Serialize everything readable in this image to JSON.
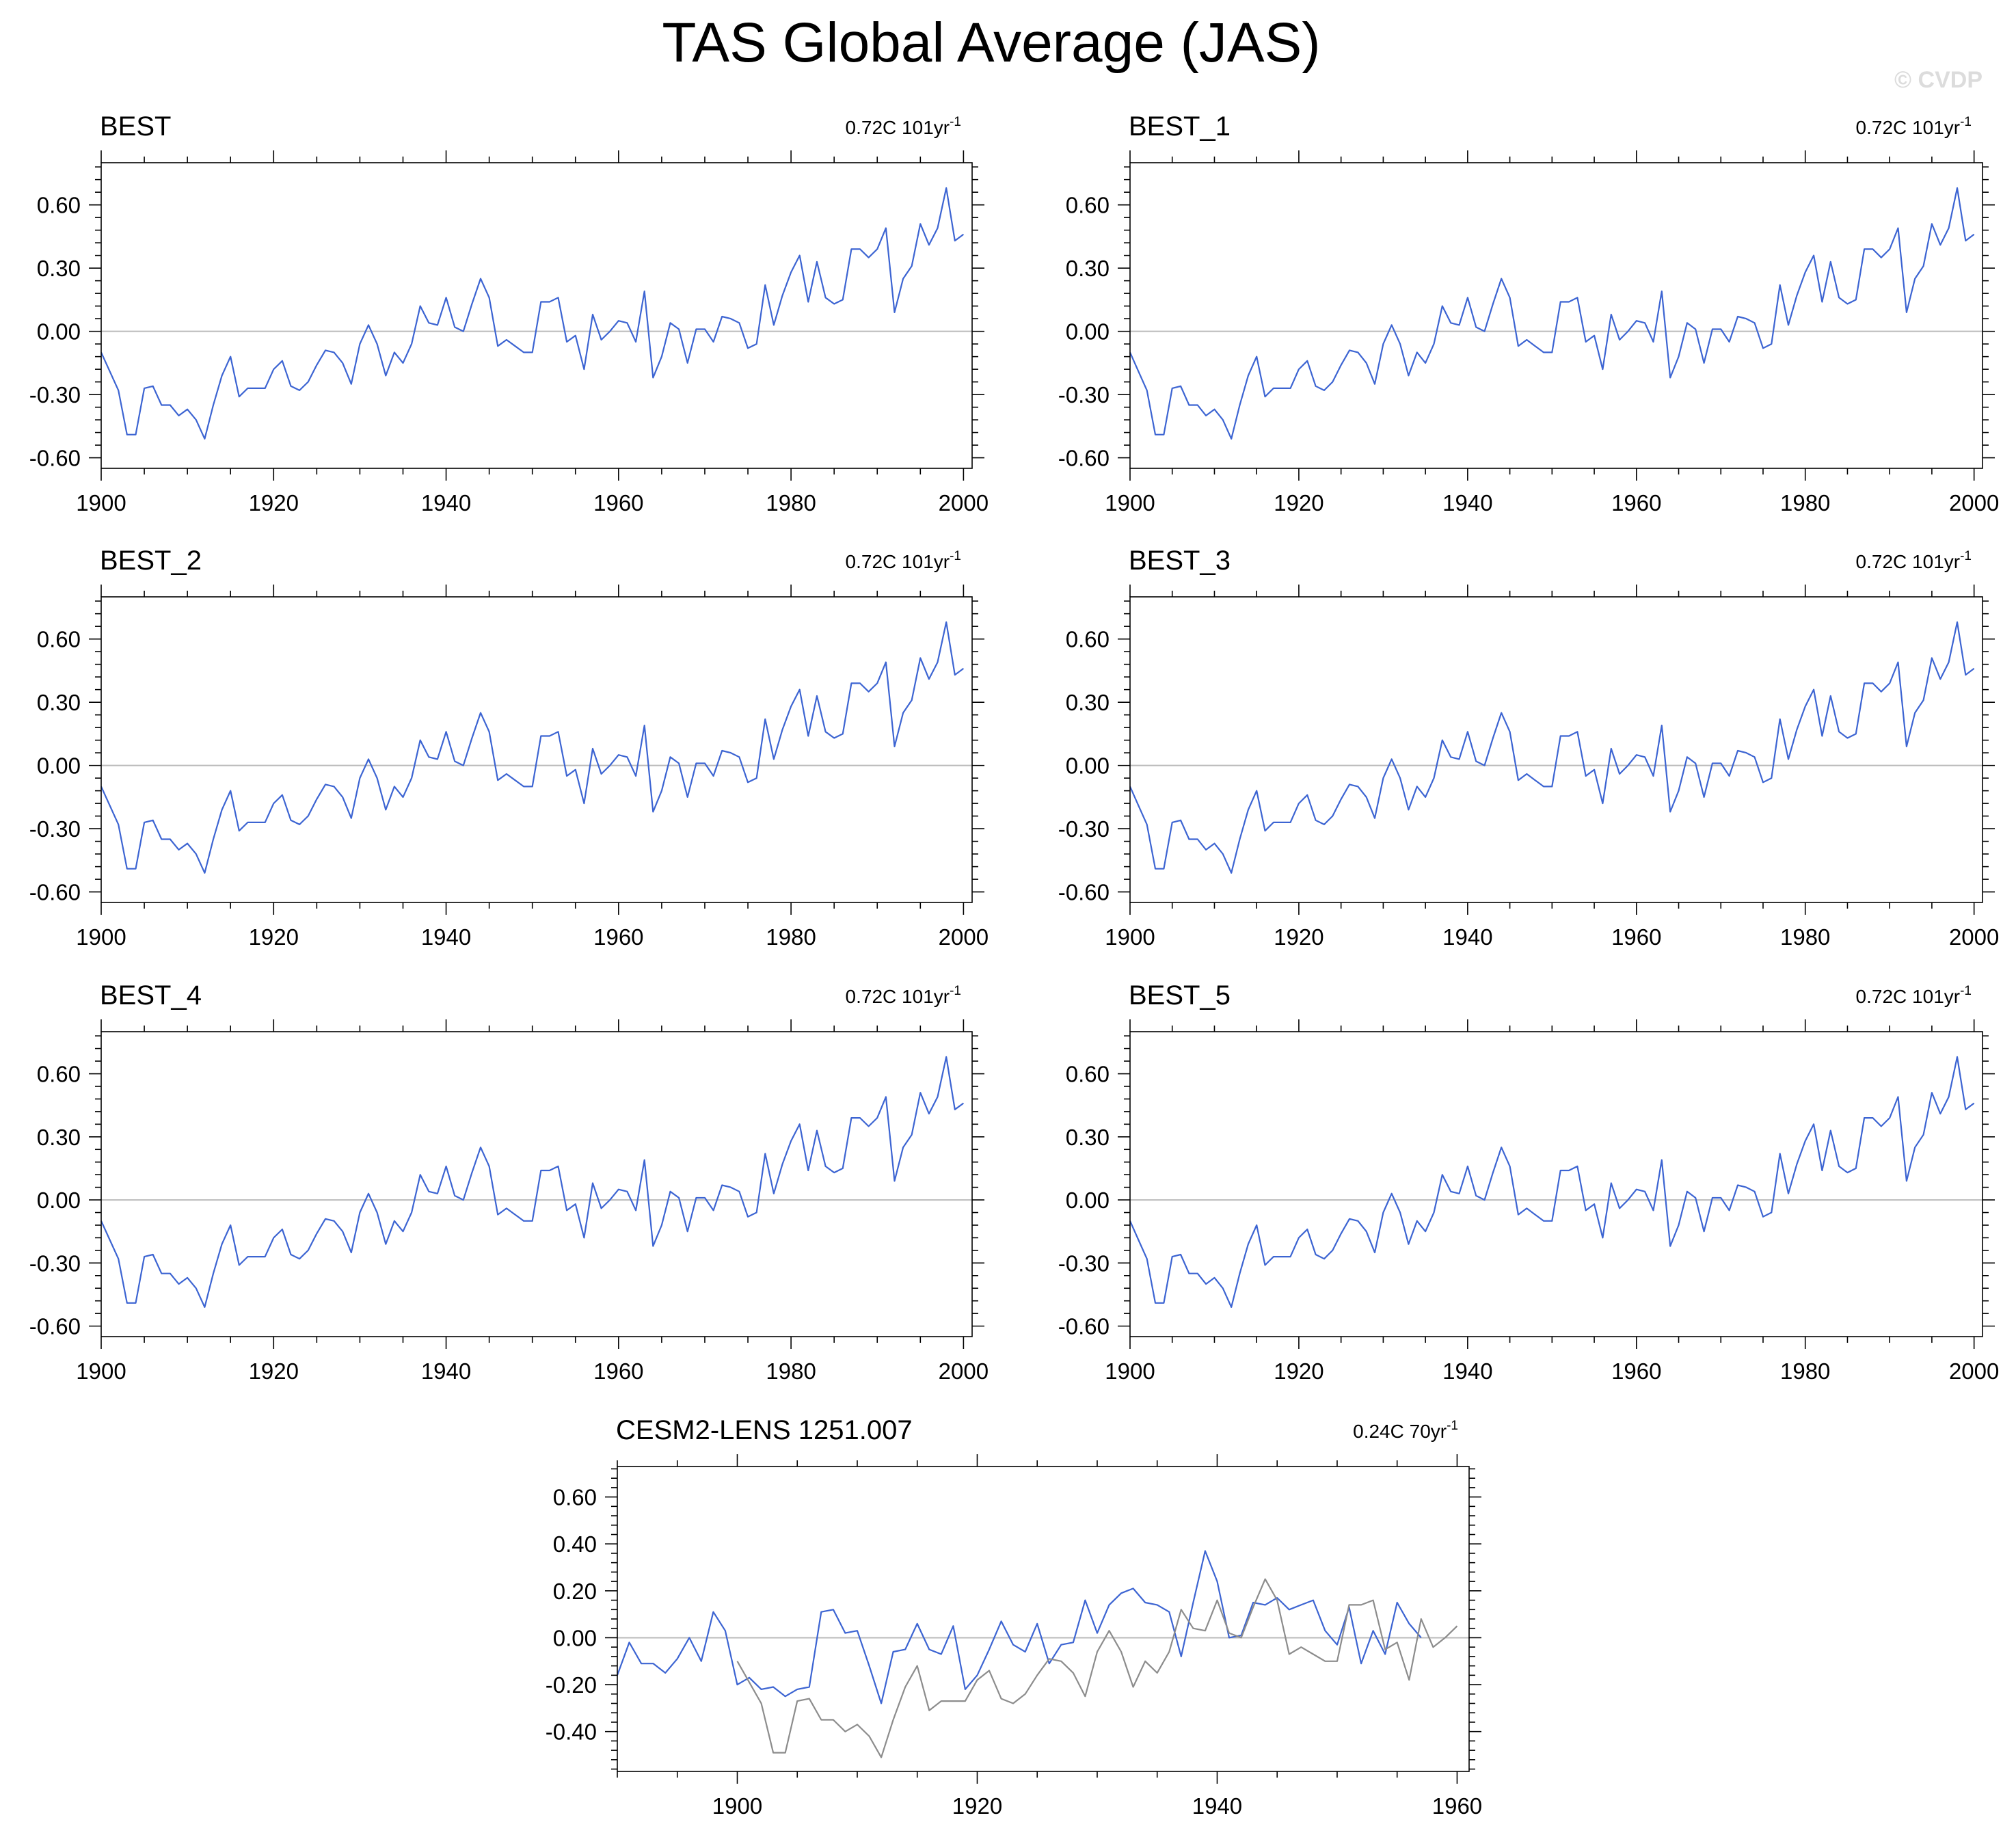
{
  "figure": {
    "title": "TAS Global Average (JAS)",
    "watermark": "© CVDP",
    "colors": {
      "primary": "#3c64d2",
      "secondary": "#8c8c8c",
      "zero_line": "#bbbbbb",
      "frame": "#000000"
    }
  },
  "chart_data": [
    {
      "type": "line",
      "title": "BEST",
      "trend_value": "0.72C 101yr",
      "trend_exp": "-1",
      "xlim": [
        1900,
        2001
      ],
      "ylim": [
        -0.65,
        0.8
      ],
      "ytick_values": [
        -0.6,
        -0.3,
        0.0,
        0.3,
        0.6
      ],
      "ytick_labels": [
        "-0.60",
        "-0.30",
        "0.00",
        "0.30",
        "0.60"
      ],
      "xtick_values": [
        1900,
        1920,
        1940,
        1960,
        1980,
        2000
      ],
      "xtick_labels": [
        "1900",
        "1920",
        "1940",
        "1960",
        "1980",
        "2000"
      ],
      "series": [
        {
          "start_year": 1900,
          "color": "#3c64d2",
          "values": [
            -0.1,
            -0.19,
            -0.28,
            -0.49,
            -0.49,
            -0.27,
            -0.26,
            -0.35,
            -0.35,
            -0.4,
            -0.37,
            -0.42,
            -0.51,
            -0.35,
            -0.21,
            -0.12,
            -0.31,
            -0.27,
            -0.27,
            -0.27,
            -0.18,
            -0.14,
            -0.26,
            -0.28,
            -0.24,
            -0.16,
            -0.09,
            -0.1,
            -0.15,
            -0.25,
            -0.06,
            0.03,
            -0.06,
            -0.21,
            -0.1,
            -0.15,
            -0.06,
            0.12,
            0.04,
            0.03,
            0.16,
            0.02,
            0.0,
            0.13,
            0.25,
            0.16,
            -0.07,
            -0.04,
            -0.07,
            -0.1,
            -0.1,
            0.14,
            0.14,
            0.16,
            -0.05,
            -0.02,
            -0.18,
            0.08,
            -0.04,
            0.0,
            0.05,
            0.04,
            -0.05,
            0.19,
            -0.22,
            -0.12,
            0.04,
            0.01,
            -0.15,
            0.01,
            0.01,
            -0.05,
            0.07,
            0.06,
            0.04,
            -0.08,
            -0.06,
            0.22,
            0.03,
            0.17,
            0.28,
            0.36,
            0.14,
            0.33,
            0.16,
            0.13,
            0.15,
            0.39,
            0.39,
            0.35,
            0.39,
            0.49,
            0.09,
            0.25,
            0.31,
            0.51,
            0.41,
            0.49,
            0.68,
            0.43,
            0.46
          ]
        }
      ]
    },
    {
      "type": "line",
      "title": "BEST_1",
      "trend_value": "0.72C 101yr",
      "trend_exp": "-1",
      "xlim": [
        1900,
        2001
      ],
      "ylim": [
        -0.65,
        0.8
      ],
      "ytick_values": [
        -0.6,
        -0.3,
        0.0,
        0.3,
        0.6
      ],
      "ytick_labels": [
        "-0.60",
        "-0.30",
        "0.00",
        "0.30",
        "0.60"
      ],
      "xtick_values": [
        1900,
        1920,
        1940,
        1960,
        1980,
        2000
      ],
      "xtick_labels": [
        "1900",
        "1920",
        "1940",
        "1960",
        "1980",
        "2000"
      ],
      "series": [
        {
          "start_year": 1900,
          "color": "#3c64d2",
          "values": [
            -0.1,
            -0.19,
            -0.28,
            -0.49,
            -0.49,
            -0.27,
            -0.26,
            -0.35,
            -0.35,
            -0.4,
            -0.37,
            -0.42,
            -0.51,
            -0.35,
            -0.21,
            -0.12,
            -0.31,
            -0.27,
            -0.27,
            -0.27,
            -0.18,
            -0.14,
            -0.26,
            -0.28,
            -0.24,
            -0.16,
            -0.09,
            -0.1,
            -0.15,
            -0.25,
            -0.06,
            0.03,
            -0.06,
            -0.21,
            -0.1,
            -0.15,
            -0.06,
            0.12,
            0.04,
            0.03,
            0.16,
            0.02,
            0.0,
            0.13,
            0.25,
            0.16,
            -0.07,
            -0.04,
            -0.07,
            -0.1,
            -0.1,
            0.14,
            0.14,
            0.16,
            -0.05,
            -0.02,
            -0.18,
            0.08,
            -0.04,
            0.0,
            0.05,
            0.04,
            -0.05,
            0.19,
            -0.22,
            -0.12,
            0.04,
            0.01,
            -0.15,
            0.01,
            0.01,
            -0.05,
            0.07,
            0.06,
            0.04,
            -0.08,
            -0.06,
            0.22,
            0.03,
            0.17,
            0.28,
            0.36,
            0.14,
            0.33,
            0.16,
            0.13,
            0.15,
            0.39,
            0.39,
            0.35,
            0.39,
            0.49,
            0.09,
            0.25,
            0.31,
            0.51,
            0.41,
            0.49,
            0.68,
            0.43,
            0.46
          ]
        }
      ]
    },
    {
      "type": "line",
      "title": "BEST_2",
      "trend_value": "0.72C 101yr",
      "trend_exp": "-1",
      "xlim": [
        1900,
        2001
      ],
      "ylim": [
        -0.65,
        0.8
      ],
      "ytick_values": [
        -0.6,
        -0.3,
        0.0,
        0.3,
        0.6
      ],
      "ytick_labels": [
        "-0.60",
        "-0.30",
        "0.00",
        "0.30",
        "0.60"
      ],
      "xtick_values": [
        1900,
        1920,
        1940,
        1960,
        1980,
        2000
      ],
      "xtick_labels": [
        "1900",
        "1920",
        "1940",
        "1960",
        "1980",
        "2000"
      ],
      "series": [
        {
          "start_year": 1900,
          "color": "#3c64d2",
          "values": [
            -0.1,
            -0.19,
            -0.28,
            -0.49,
            -0.49,
            -0.27,
            -0.26,
            -0.35,
            -0.35,
            -0.4,
            -0.37,
            -0.42,
            -0.51,
            -0.35,
            -0.21,
            -0.12,
            -0.31,
            -0.27,
            -0.27,
            -0.27,
            -0.18,
            -0.14,
            -0.26,
            -0.28,
            -0.24,
            -0.16,
            -0.09,
            -0.1,
            -0.15,
            -0.25,
            -0.06,
            0.03,
            -0.06,
            -0.21,
            -0.1,
            -0.15,
            -0.06,
            0.12,
            0.04,
            0.03,
            0.16,
            0.02,
            0.0,
            0.13,
            0.25,
            0.16,
            -0.07,
            -0.04,
            -0.07,
            -0.1,
            -0.1,
            0.14,
            0.14,
            0.16,
            -0.05,
            -0.02,
            -0.18,
            0.08,
            -0.04,
            0.0,
            0.05,
            0.04,
            -0.05,
            0.19,
            -0.22,
            -0.12,
            0.04,
            0.01,
            -0.15,
            0.01,
            0.01,
            -0.05,
            0.07,
            0.06,
            0.04,
            -0.08,
            -0.06,
            0.22,
            0.03,
            0.17,
            0.28,
            0.36,
            0.14,
            0.33,
            0.16,
            0.13,
            0.15,
            0.39,
            0.39,
            0.35,
            0.39,
            0.49,
            0.09,
            0.25,
            0.31,
            0.51,
            0.41,
            0.49,
            0.68,
            0.43,
            0.46
          ]
        }
      ]
    },
    {
      "type": "line",
      "title": "BEST_3",
      "trend_value": "0.72C 101yr",
      "trend_exp": "-1",
      "xlim": [
        1900,
        2001
      ],
      "ylim": [
        -0.65,
        0.8
      ],
      "ytick_values": [
        -0.6,
        -0.3,
        0.0,
        0.3,
        0.6
      ],
      "ytick_labels": [
        "-0.60",
        "-0.30",
        "0.00",
        "0.30",
        "0.60"
      ],
      "xtick_values": [
        1900,
        1920,
        1940,
        1960,
        1980,
        2000
      ],
      "xtick_labels": [
        "1900",
        "1920",
        "1940",
        "1960",
        "1980",
        "2000"
      ],
      "series": [
        {
          "start_year": 1900,
          "color": "#3c64d2",
          "values": [
            -0.1,
            -0.19,
            -0.28,
            -0.49,
            -0.49,
            -0.27,
            -0.26,
            -0.35,
            -0.35,
            -0.4,
            -0.37,
            -0.42,
            -0.51,
            -0.35,
            -0.21,
            -0.12,
            -0.31,
            -0.27,
            -0.27,
            -0.27,
            -0.18,
            -0.14,
            -0.26,
            -0.28,
            -0.24,
            -0.16,
            -0.09,
            -0.1,
            -0.15,
            -0.25,
            -0.06,
            0.03,
            -0.06,
            -0.21,
            -0.1,
            -0.15,
            -0.06,
            0.12,
            0.04,
            0.03,
            0.16,
            0.02,
            0.0,
            0.13,
            0.25,
            0.16,
            -0.07,
            -0.04,
            -0.07,
            -0.1,
            -0.1,
            0.14,
            0.14,
            0.16,
            -0.05,
            -0.02,
            -0.18,
            0.08,
            -0.04,
            0.0,
            0.05,
            0.04,
            -0.05,
            0.19,
            -0.22,
            -0.12,
            0.04,
            0.01,
            -0.15,
            0.01,
            0.01,
            -0.05,
            0.07,
            0.06,
            0.04,
            -0.08,
            -0.06,
            0.22,
            0.03,
            0.17,
            0.28,
            0.36,
            0.14,
            0.33,
            0.16,
            0.13,
            0.15,
            0.39,
            0.39,
            0.35,
            0.39,
            0.49,
            0.09,
            0.25,
            0.31,
            0.51,
            0.41,
            0.49,
            0.68,
            0.43,
            0.46
          ]
        }
      ]
    },
    {
      "type": "line",
      "title": "BEST_4",
      "trend_value": "0.72C 101yr",
      "trend_exp": "-1",
      "xlim": [
        1900,
        2001
      ],
      "ylim": [
        -0.65,
        0.8
      ],
      "ytick_values": [
        -0.6,
        -0.3,
        0.0,
        0.3,
        0.6
      ],
      "ytick_labels": [
        "-0.60",
        "-0.30",
        "0.00",
        "0.30",
        "0.60"
      ],
      "xtick_values": [
        1900,
        1920,
        1940,
        1960,
        1980,
        2000
      ],
      "xtick_labels": [
        "1900",
        "1920",
        "1940",
        "1960",
        "1980",
        "2000"
      ],
      "series": [
        {
          "start_year": 1900,
          "color": "#3c64d2",
          "values": [
            -0.1,
            -0.19,
            -0.28,
            -0.49,
            -0.49,
            -0.27,
            -0.26,
            -0.35,
            -0.35,
            -0.4,
            -0.37,
            -0.42,
            -0.51,
            -0.35,
            -0.21,
            -0.12,
            -0.31,
            -0.27,
            -0.27,
            -0.27,
            -0.18,
            -0.14,
            -0.26,
            -0.28,
            -0.24,
            -0.16,
            -0.09,
            -0.1,
            -0.15,
            -0.25,
            -0.06,
            0.03,
            -0.06,
            -0.21,
            -0.1,
            -0.15,
            -0.06,
            0.12,
            0.04,
            0.03,
            0.16,
            0.02,
            0.0,
            0.13,
            0.25,
            0.16,
            -0.07,
            -0.04,
            -0.07,
            -0.1,
            -0.1,
            0.14,
            0.14,
            0.16,
            -0.05,
            -0.02,
            -0.18,
            0.08,
            -0.04,
            0.0,
            0.05,
            0.04,
            -0.05,
            0.19,
            -0.22,
            -0.12,
            0.04,
            0.01,
            -0.15,
            0.01,
            0.01,
            -0.05,
            0.07,
            0.06,
            0.04,
            -0.08,
            -0.06,
            0.22,
            0.03,
            0.17,
            0.28,
            0.36,
            0.14,
            0.33,
            0.16,
            0.13,
            0.15,
            0.39,
            0.39,
            0.35,
            0.39,
            0.49,
            0.09,
            0.25,
            0.31,
            0.51,
            0.41,
            0.49,
            0.68,
            0.43,
            0.46
          ]
        }
      ]
    },
    {
      "type": "line",
      "title": "BEST_5",
      "trend_value": "0.72C 101yr",
      "trend_exp": "-1",
      "xlim": [
        1900,
        2001
      ],
      "ylim": [
        -0.65,
        0.8
      ],
      "ytick_values": [
        -0.6,
        -0.3,
        0.0,
        0.3,
        0.6
      ],
      "ytick_labels": [
        "-0.60",
        "-0.30",
        "0.00",
        "0.30",
        "0.60"
      ],
      "xtick_values": [
        1900,
        1920,
        1940,
        1960,
        1980,
        2000
      ],
      "xtick_labels": [
        "1900",
        "1920",
        "1940",
        "1960",
        "1980",
        "2000"
      ],
      "series": [
        {
          "start_year": 1900,
          "color": "#3c64d2",
          "values": [
            -0.1,
            -0.19,
            -0.28,
            -0.49,
            -0.49,
            -0.27,
            -0.26,
            -0.35,
            -0.35,
            -0.4,
            -0.37,
            -0.42,
            -0.51,
            -0.35,
            -0.21,
            -0.12,
            -0.31,
            -0.27,
            -0.27,
            -0.27,
            -0.18,
            -0.14,
            -0.26,
            -0.28,
            -0.24,
            -0.16,
            -0.09,
            -0.1,
            -0.15,
            -0.25,
            -0.06,
            0.03,
            -0.06,
            -0.21,
            -0.1,
            -0.15,
            -0.06,
            0.12,
            0.04,
            0.03,
            0.16,
            0.02,
            0.0,
            0.13,
            0.25,
            0.16,
            -0.07,
            -0.04,
            -0.07,
            -0.1,
            -0.1,
            0.14,
            0.14,
            0.16,
            -0.05,
            -0.02,
            -0.18,
            0.08,
            -0.04,
            0.0,
            0.05,
            0.04,
            -0.05,
            0.19,
            -0.22,
            -0.12,
            0.04,
            0.01,
            -0.15,
            0.01,
            0.01,
            -0.05,
            0.07,
            0.06,
            0.04,
            -0.08,
            -0.06,
            0.22,
            0.03,
            0.17,
            0.28,
            0.36,
            0.14,
            0.33,
            0.16,
            0.13,
            0.15,
            0.39,
            0.39,
            0.35,
            0.39,
            0.49,
            0.09,
            0.25,
            0.31,
            0.51,
            0.41,
            0.49,
            0.68,
            0.43,
            0.46
          ]
        }
      ]
    },
    {
      "type": "line",
      "title": "CESM2-LENS 1251.007",
      "trend_value": "0.24C 70yr",
      "trend_exp": "-1",
      "xlim": [
        1890,
        1961
      ],
      "ylim": [
        -0.57,
        0.73
      ],
      "ytick_values": [
        -0.4,
        -0.2,
        0.0,
        0.2,
        0.4,
        0.6
      ],
      "ytick_labels": [
        "-0.40",
        "-0.20",
        "0.00",
        "0.20",
        "0.40",
        "0.60"
      ],
      "xtick_values": [
        1900,
        1920,
        1940,
        1960
      ],
      "xtick_labels": [
        "1900",
        "1920",
        "1940",
        "1960"
      ],
      "series": [
        {
          "start_year": 1890,
          "color": "#3c64d2",
          "values": [
            -0.16,
            -0.02,
            -0.11,
            -0.11,
            -0.15,
            -0.09,
            0.0,
            -0.1,
            0.11,
            0.03,
            -0.2,
            -0.17,
            -0.22,
            -0.21,
            -0.25,
            -0.22,
            -0.21,
            0.11,
            0.12,
            0.02,
            0.03,
            -0.12,
            -0.28,
            -0.06,
            -0.05,
            0.06,
            -0.05,
            -0.07,
            0.05,
            -0.22,
            -0.16,
            -0.05,
            0.07,
            -0.03,
            -0.06,
            0.06,
            -0.11,
            -0.03,
            -0.02,
            0.16,
            0.02,
            0.14,
            0.19,
            0.21,
            0.15,
            0.14,
            0.11,
            -0.08,
            0.15,
            0.37,
            0.24,
            0.0,
            0.01,
            0.15,
            0.14,
            0.17,
            0.12,
            0.14,
            0.16,
            0.03,
            -0.03,
            0.13,
            -0.11,
            0.03,
            -0.07,
            0.15,
            0.06,
            0.0
          ]
        },
        {
          "start_year": 1900,
          "color": "#8c8c8c",
          "values": [
            -0.1,
            -0.19,
            -0.28,
            -0.49,
            -0.49,
            -0.27,
            -0.26,
            -0.35,
            -0.35,
            -0.4,
            -0.37,
            -0.42,
            -0.51,
            -0.35,
            -0.21,
            -0.12,
            -0.31,
            -0.27,
            -0.27,
            -0.27,
            -0.18,
            -0.14,
            -0.26,
            -0.28,
            -0.24,
            -0.16,
            -0.09,
            -0.1,
            -0.15,
            -0.25,
            -0.06,
            0.03,
            -0.06,
            -0.21,
            -0.1,
            -0.15,
            -0.06,
            0.12,
            0.04,
            0.03,
            0.16,
            0.02,
            0.0,
            0.13,
            0.25,
            0.16,
            -0.07,
            -0.04,
            -0.07,
            -0.1,
            -0.1,
            0.14,
            0.14,
            0.16,
            -0.05,
            -0.02,
            -0.18,
            0.08,
            -0.04,
            0.0,
            0.05
          ]
        }
      ]
    }
  ]
}
